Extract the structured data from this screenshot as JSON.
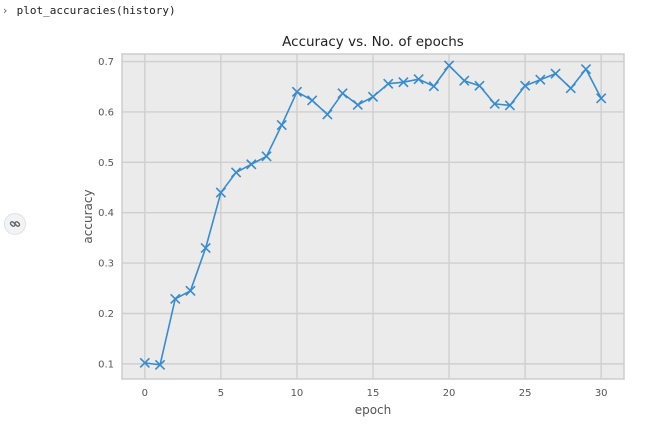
{
  "cell": {
    "prompt_icon": "chevron-right-icon",
    "code": "plot_accuracies(history)"
  },
  "output_toolbar": {
    "link_icon": "link-icon"
  },
  "chart_data": {
    "type": "line",
    "title": "Accuracy vs. No. of epochs",
    "xlabel": "epoch",
    "ylabel": "accuracy",
    "marker": "x",
    "line_color": "#3a8bc9",
    "background_color": "#ebebeb",
    "grid": true,
    "xlim": [
      -1.5,
      31.5
    ],
    "ylim": [
      0.07,
      0.715
    ],
    "x_ticks": [
      0,
      5,
      10,
      15,
      20,
      25,
      30
    ],
    "y_ticks": [
      0.1,
      0.2,
      0.3,
      0.4,
      0.5,
      0.6,
      0.7
    ],
    "x_tick_labels": [
      "0",
      "5",
      "10",
      "15",
      "20",
      "25",
      "30"
    ],
    "y_tick_labels": [
      "0.1",
      "0.2",
      "0.3",
      "0.4",
      "0.5",
      "0.6",
      "0.7"
    ],
    "x": [
      0,
      1,
      2,
      3,
      4,
      5,
      6,
      7,
      8,
      9,
      10,
      11,
      12,
      13,
      14,
      15,
      16,
      17,
      18,
      19,
      20,
      21,
      22,
      23,
      24,
      25,
      26,
      27,
      28,
      29,
      30
    ],
    "y": [
      0.102,
      0.098,
      0.229,
      0.245,
      0.33,
      0.44,
      0.48,
      0.496,
      0.512,
      0.574,
      0.64,
      0.623,
      0.595,
      0.637,
      0.614,
      0.63,
      0.656,
      0.659,
      0.665,
      0.651,
      0.692,
      0.662,
      0.652,
      0.616,
      0.613,
      0.652,
      0.664,
      0.676,
      0.647,
      0.685,
      0.627
    ]
  }
}
